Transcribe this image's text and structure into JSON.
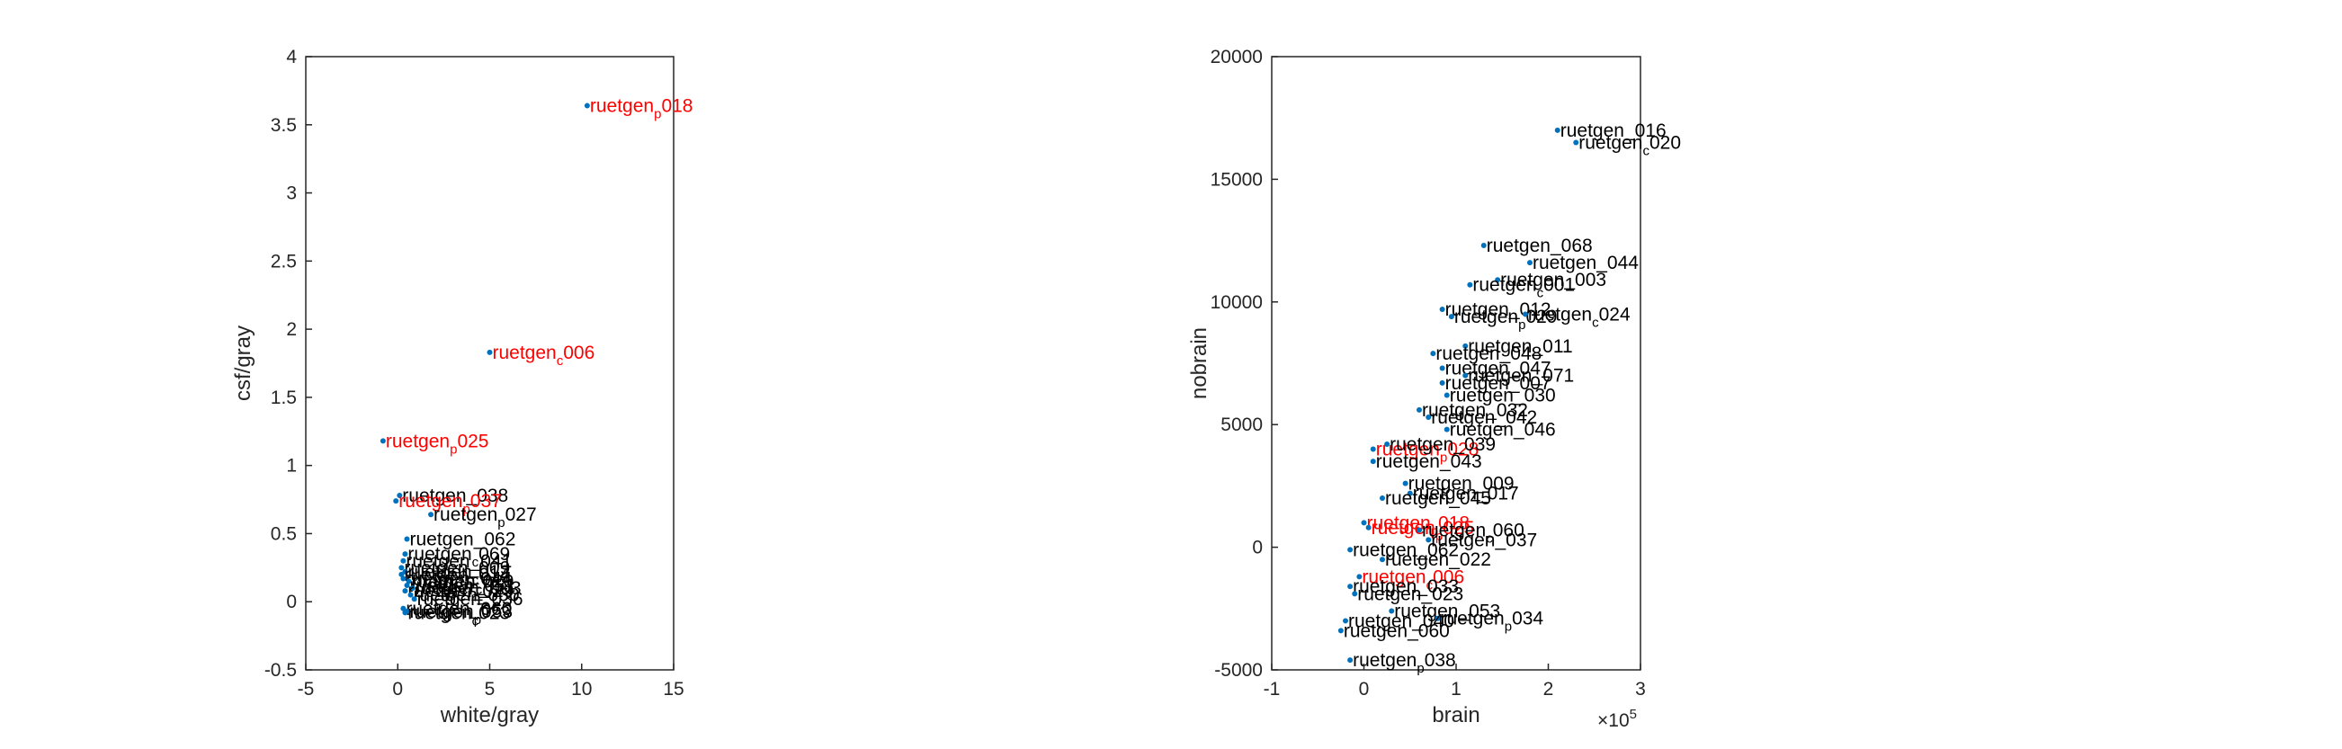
{
  "chart_data": [
    {
      "type": "scatter",
      "title": "",
      "xlabel": "white/gray",
      "ylabel": "csf/gray",
      "xlim": [
        -5,
        15
      ],
      "ylim": [
        -0.5,
        4
      ],
      "xticks": [
        "-5",
        "0",
        "5",
        "10",
        "15"
      ],
      "yticks": [
        "-0.5",
        "0",
        "0.5",
        "1",
        "1.5",
        "2",
        "2.5",
        "3",
        "3.5",
        "4"
      ],
      "grid": false,
      "marker_color": "#0072BD",
      "colors": {
        "control": "#000000",
        "highlight": "#FF0000"
      },
      "points": [
        {
          "x": 10.3,
          "y": 3.64,
          "label": "ruetgen",
          "sub": "p",
          "suffix": "018",
          "highlight": true
        },
        {
          "x": 5.0,
          "y": 1.83,
          "label": "ruetgen",
          "sub": "c",
          "suffix": "006",
          "highlight": true
        },
        {
          "x": -0.8,
          "y": 1.18,
          "label": "ruetgen",
          "sub": "p",
          "suffix": "025",
          "highlight": true
        },
        {
          "x": 0.1,
          "y": 0.78,
          "label": "ruetgen",
          "sub": "",
          "suffix": "038",
          "highlight": false
        },
        {
          "x": -0.1,
          "y": 0.74,
          "label": "ruetgen",
          "sub": "p",
          "suffix": "037",
          "highlight": true
        },
        {
          "x": 1.8,
          "y": 0.64,
          "label": "ruetgen",
          "sub": "p",
          "suffix": "027",
          "highlight": false
        },
        {
          "x": 0.5,
          "y": 0.46,
          "label": "ruetgen",
          "sub": "",
          "suffix": "062",
          "highlight": false
        },
        {
          "x": 0.4,
          "y": 0.35,
          "label": "ruetgen",
          "sub": "c",
          "suffix": "069",
          "highlight": false
        },
        {
          "x": 0.3,
          "y": 0.3,
          "label": "ruetgen",
          "sub": "",
          "suffix": "041",
          "highlight": false
        },
        {
          "x": 0.2,
          "y": 0.25,
          "label": "ruetgen",
          "sub": "",
          "suffix": "009",
          "highlight": false
        },
        {
          "x": 0.4,
          "y": 0.22,
          "label": "ruetgen",
          "sub": "c",
          "suffix": "012",
          "highlight": false
        },
        {
          "x": 0.2,
          "y": 0.2,
          "label": "ruetgen",
          "sub": "",
          "suffix": "014",
          "highlight": false
        },
        {
          "x": 0.3,
          "y": 0.17,
          "label": "ruetgen",
          "sub": "",
          "suffix": "044",
          "highlight": false
        },
        {
          "x": 0.6,
          "y": 0.15,
          "label": "ruetgen",
          "sub": "c",
          "suffix": "020",
          "highlight": false
        },
        {
          "x": 0.5,
          "y": 0.12,
          "label": "ruetgen",
          "sub": "",
          "suffix": "051",
          "highlight": false
        },
        {
          "x": 0.8,
          "y": 0.1,
          "label": "ruetgen",
          "sub": "",
          "suffix": "003",
          "highlight": false
        },
        {
          "x": 0.4,
          "y": 0.08,
          "label": "ruetgen",
          "sub": "",
          "suffix": "029",
          "highlight": false
        },
        {
          "x": 0.7,
          "y": 0.05,
          "label": "ruetgen",
          "sub": "",
          "suffix": "050",
          "highlight": false
        },
        {
          "x": 0.9,
          "y": 0.02,
          "label": "ruetgen",
          "sub": "",
          "suffix": "036",
          "highlight": false
        },
        {
          "x": 0.3,
          "y": -0.05,
          "label": "ruetgen",
          "sub": "",
          "suffix": "060",
          "highlight": false
        },
        {
          "x": 0.5,
          "y": -0.07,
          "label": "ruetgen",
          "sub": "p",
          "suffix": "053",
          "highlight": false
        },
        {
          "x": 0.4,
          "y": -0.08,
          "label": "ruetgen",
          "sub": "c",
          "suffix": "023",
          "highlight": false
        }
      ]
    },
    {
      "type": "scatter",
      "title": "",
      "xlabel": "brain",
      "ylabel": "nobrain",
      "xlim": [
        -1,
        3
      ],
      "ylim": [
        -5000,
        20000
      ],
      "x_exponent_label": "×10",
      "x_exponent_power": "5",
      "xticks": [
        "-1",
        "0",
        "1",
        "2",
        "3"
      ],
      "yticks": [
        "-5000",
        "0",
        "5000",
        "10000",
        "15000",
        "20000"
      ],
      "grid": false,
      "marker_color": "#0072BD",
      "colors": {
        "control": "#000000",
        "highlight": "#FF0000"
      },
      "points": [
        {
          "x": 2.1,
          "y": 17000,
          "label": "ruetgen",
          "sub": "",
          "suffix": "016",
          "highlight": false
        },
        {
          "x": 2.3,
          "y": 16500,
          "label": "ruetgen",
          "sub": "c",
          "suffix": "020",
          "highlight": false
        },
        {
          "x": 1.3,
          "y": 12300,
          "label": "ruetgen",
          "sub": "",
          "suffix": "068",
          "highlight": false
        },
        {
          "x": 1.8,
          "y": 11600,
          "label": "ruetgen",
          "sub": "",
          "suffix": "044",
          "highlight": false
        },
        {
          "x": 1.45,
          "y": 10900,
          "label": "ruetgen",
          "sub": "",
          "suffix": "003",
          "highlight": false
        },
        {
          "x": 1.15,
          "y": 10700,
          "label": "ruetgen",
          "sub": "c",
          "suffix": "001",
          "highlight": false
        },
        {
          "x": 0.85,
          "y": 9700,
          "label": "ruetgen",
          "sub": "",
          "suffix": "012",
          "highlight": false
        },
        {
          "x": 0.95,
          "y": 9400,
          "label": "ruetgen",
          "sub": "p",
          "suffix": "029",
          "highlight": false
        },
        {
          "x": 1.75,
          "y": 9500,
          "label": "ruetgen",
          "sub": "c",
          "suffix": "024",
          "highlight": false
        },
        {
          "x": 1.1,
          "y": 8200,
          "label": "ruetgen",
          "sub": "",
          "suffix": "011",
          "highlight": false
        },
        {
          "x": 0.75,
          "y": 7900,
          "label": "ruetgen",
          "sub": "",
          "suffix": "048",
          "highlight": false
        },
        {
          "x": 0.85,
          "y": 7300,
          "label": "ruetgen",
          "sub": "",
          "suffix": "047",
          "highlight": false
        },
        {
          "x": 1.1,
          "y": 7000,
          "label": "ruetgen",
          "sub": "",
          "suffix": "071",
          "highlight": false
        },
        {
          "x": 0.85,
          "y": 6700,
          "label": "ruetgen",
          "sub": "",
          "suffix": "007",
          "highlight": false
        },
        {
          "x": 0.9,
          "y": 6200,
          "label": "ruetgen",
          "sub": "",
          "suffix": "030",
          "highlight": false
        },
        {
          "x": 0.6,
          "y": 5600,
          "label": "ruetgen",
          "sub": "",
          "suffix": "032",
          "highlight": false
        },
        {
          "x": 0.7,
          "y": 5300,
          "label": "ruetgen",
          "sub": "",
          "suffix": "042",
          "highlight": false
        },
        {
          "x": 0.9,
          "y": 4800,
          "label": "ruetgen",
          "sub": "",
          "suffix": "046",
          "highlight": false
        },
        {
          "x": 0.1,
          "y": 4000,
          "label": "ruetgen",
          "sub": "p",
          "suffix": "028",
          "highlight": true
        },
        {
          "x": 0.25,
          "y": 4200,
          "label": "ruetgen",
          "sub": "",
          "suffix": "039",
          "highlight": false
        },
        {
          "x": 0.1,
          "y": 3500,
          "label": "ruetgen",
          "sub": "",
          "suffix": "043",
          "highlight": false
        },
        {
          "x": 0.45,
          "y": 2600,
          "label": "ruetgen",
          "sub": "",
          "suffix": "009",
          "highlight": false
        },
        {
          "x": 0.5,
          "y": 2200,
          "label": "ruetgen",
          "sub": "",
          "suffix": "017",
          "highlight": false
        },
        {
          "x": 0.2,
          "y": 2000,
          "label": "ruetgen",
          "sub": "",
          "suffix": "045",
          "highlight": false
        },
        {
          "x": 0.0,
          "y": 1000,
          "label": "ruetgen",
          "sub": "p",
          "suffix": "018",
          "highlight": true
        },
        {
          "x": 0.05,
          "y": 800,
          "label": "ruetgen",
          "sub": "p",
          "suffix": "025",
          "highlight": true
        },
        {
          "x": 0.6,
          "y": 700,
          "label": "ruetgen",
          "sub": "c",
          "suffix": "060",
          "highlight": false
        },
        {
          "x": 0.7,
          "y": 300,
          "label": "ruetgen",
          "sub": "",
          "suffix": "037",
          "highlight": false
        },
        {
          "x": -0.15,
          "y": -100,
          "label": "ruetgen",
          "sub": "",
          "suffix": "062",
          "highlight": false
        },
        {
          "x": 0.2,
          "y": -500,
          "label": "ruetgen",
          "sub": "",
          "suffix": "022",
          "highlight": false
        },
        {
          "x": -0.05,
          "y": -1200,
          "label": "ruetgen",
          "sub": "c",
          "suffix": "006",
          "highlight": true
        },
        {
          "x": -0.15,
          "y": -1600,
          "label": "ruetgen",
          "sub": "",
          "suffix": "033",
          "highlight": false
        },
        {
          "x": -0.1,
          "y": -1900,
          "label": "ruetgen",
          "sub": "",
          "suffix": "023",
          "highlight": false
        },
        {
          "x": 0.3,
          "y": -2600,
          "label": "ruetgen",
          "sub": "",
          "suffix": "053",
          "highlight": false
        },
        {
          "x": 0.8,
          "y": -2900,
          "label": "ruetgen",
          "sub": "p",
          "suffix": "034",
          "highlight": false
        },
        {
          "x": -0.2,
          "y": -3000,
          "label": "ruetgen",
          "sub": "",
          "suffix": "040",
          "highlight": false
        },
        {
          "x": -0.25,
          "y": -3400,
          "label": "ruetgen",
          "sub": "",
          "suffix": "060",
          "highlight": false
        },
        {
          "x": -0.15,
          "y": -4600,
          "label": "ruetgen",
          "sub": "p",
          "suffix": "038",
          "highlight": false
        }
      ]
    }
  ]
}
